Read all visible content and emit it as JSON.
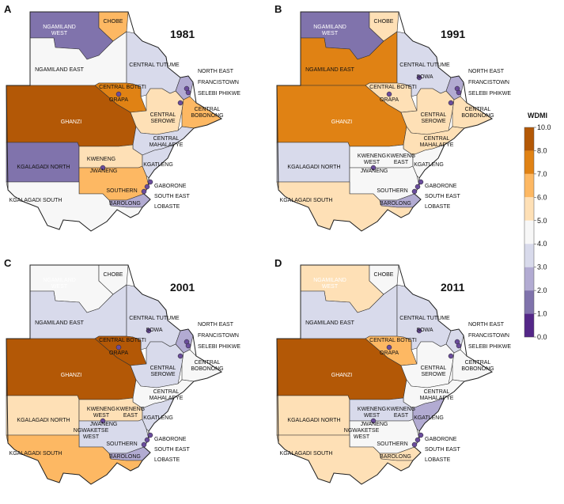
{
  "panels": [
    {
      "letter": "A",
      "year": "1981",
      "categories": {
        "NGAMILAND WEST": "c2",
        "CHOBE": "c7",
        "NGAMILAND EAST": "c5",
        "CENTRAL TUTUME": "c4",
        "NORTH EAST": "c3",
        "FRANCISTOWN": "c5",
        "SELEBI PHIKWE": "c5",
        "CENTRAL BOTETI": "c8",
        "ORAPA": "c8",
        "CENTRAL SEROWE": "c6",
        "CENTRAL BOBONONG": "c7",
        "GHANZI": "c9",
        "CENTRAL MAHALAPYE": "c4",
        "KGALAGADI NORTH": "c2",
        "KWENENG": "c6",
        "JWANENG": "c6",
        "SOUTHERN": "c7",
        "KGATLENG": "c4",
        "GABORONE": "c5",
        "SOUTH EAST": "c5",
        "LOBASTE": "c5",
        "BAROLONG": "c3",
        "KGALAGADI SOUTH": "c5"
      }
    },
    {
      "letter": "B",
      "year": "1991",
      "categories": {
        "NGAMILAND WEST": "c2",
        "CHOBE": "c6",
        "NGAMILAND EAST": "c8",
        "CENTRAL TUTUME": "c4",
        "SOWA": "c4",
        "NORTH EAST": "c3",
        "FRANCISTOWN": "c5",
        "SELEBI PHIKWE": "c5",
        "CENTRAL BOTETI": "c6",
        "ORAPA": "c6",
        "CENTRAL SEROWE": "c6",
        "CENTRAL BOBONONG": "c6",
        "GHANZI": "c8",
        "CENTRAL MAHALAPYE": "c6",
        "KGALAGADI NORTH": "c4",
        "KWENENG WEST": "c5",
        "KWENENG EAST": "c5",
        "JWANENG": "c5",
        "SOUTHERN": "c5",
        "KGATLENG": "c5",
        "GABORONE": "c5",
        "SOUTH EAST": "c5",
        "LOBASTE": "c5",
        "BAROLONG": "c3",
        "KGALAGADI SOUTH": "c6"
      }
    },
    {
      "letter": "C",
      "year": "2001",
      "categories": {
        "NGAMILAND WEST": "c5",
        "CHOBE": "c5",
        "NGAMILAND EAST": "c4",
        "CENTRAL TUTUME": "c4",
        "SOWA": "c5",
        "NORTH EAST": "c3",
        "FRANCISTOWN": "c5",
        "SELEBI PHIKWE": "c5",
        "CENTRAL BOTETI": "c9",
        "ORAPA": "c9",
        "CENTRAL SEROWE": "c4",
        "CENTRAL BOBONONG": "c5",
        "GHANZI": "c9",
        "CENTRAL MAHALAPYE": "c5",
        "KGALAGADI NORTH": "c6",
        "KWENENG WEST": "c6",
        "KWENENG EAST": "c6",
        "NGWAKETSE WEST": "c4",
        "JWANENG": "c5",
        "SOUTHERN": "c4",
        "KGATLENG": "c4",
        "GABORONE": "c5",
        "SOUTH EAST": "c5",
        "LOBASTE": "c5",
        "BAROLONG": "c3",
        "KGALAGADI SOUTH": "c7"
      }
    },
    {
      "letter": "D",
      "year": "2011",
      "categories": {
        "NGAMILAND WEST": "c6",
        "CHOBE": "c5",
        "NGAMILAND EAST": "c4",
        "CENTRAL TUTUME": "c4",
        "SOWA": "c5",
        "NORTH EAST": "c4",
        "FRANCISTOWN": "c5",
        "SELEBI PHIKWE": "c5",
        "CENTRAL BOTETI": "c7",
        "ORAPA": "c7",
        "CENTRAL SEROWE": "c5",
        "CENTRAL BOBONONG": "c5",
        "GHANZI": "c9",
        "CENTRAL MAHALAPYE": "c5",
        "KGALAGADI NORTH": "c6",
        "KWENENG WEST": "c4",
        "KWENENG EAST": "c4",
        "NGWAKETSE WEST": "c5",
        "JWANENG": "c5",
        "SOUTHERN": "c5",
        "KGATLENG": "c3",
        "GABORONE": "c5",
        "SOUTH EAST": "c5",
        "LOBASTE": "c5",
        "BAROLONG": "c6",
        "KGALAGADI SOUTH": "c6"
      }
    }
  ],
  "legend": {
    "title": "WDMI",
    "ticks": [
      "10.0",
      "8.0",
      "7.0",
      "6.0",
      "5.0",
      "4.0",
      "3.0",
      "2.0",
      "1.0",
      "0.0"
    ],
    "classes": [
      {
        "id": "c9",
        "color": "#b35806"
      },
      {
        "id": "c8",
        "color": "#e08214"
      },
      {
        "id": "c7",
        "color": "#fdb863"
      },
      {
        "id": "c6",
        "color": "#fee0b6"
      },
      {
        "id": "c5",
        "color": "#f7f7f7"
      },
      {
        "id": "c4",
        "color": "#d8daeb"
      },
      {
        "id": "c3",
        "color": "#b2abd2"
      },
      {
        "id": "c2",
        "color": "#8073ac"
      },
      {
        "id": "c1",
        "color": "#542788"
      }
    ],
    "point_color": "#6a4c9c"
  }
}
